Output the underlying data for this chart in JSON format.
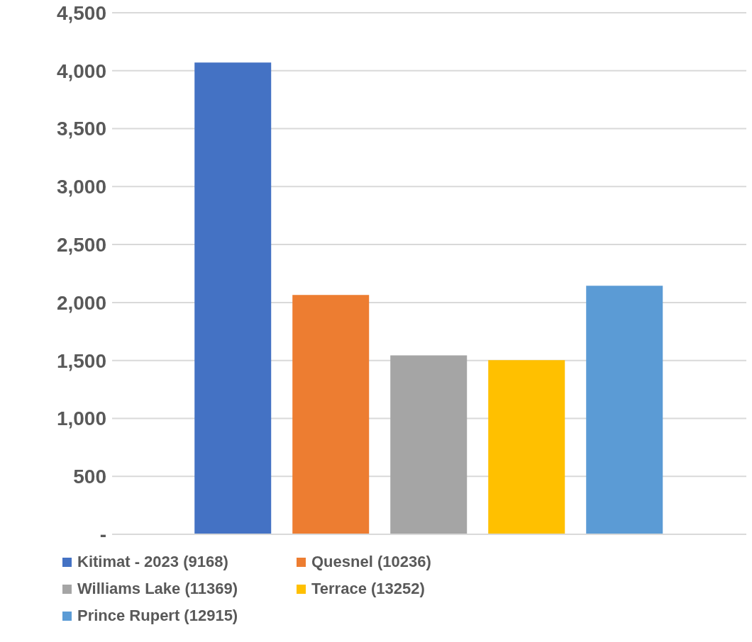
{
  "chart_data": {
    "type": "bar",
    "categories": [
      null
    ],
    "series": [
      {
        "name": "Kitimat - 2023 (9168)",
        "color": "#4472c4",
        "values": [
          4070
        ]
      },
      {
        "name": "Quesnel (10236)",
        "color": "#ed7d31",
        "values": [
          2065
        ]
      },
      {
        "name": "Williams Lake (11369)",
        "color": "#a5a5a5",
        "values": [
          1544
        ]
      },
      {
        "name": "Terrace (13252)",
        "color": "#ffc000",
        "values": [
          1502
        ]
      },
      {
        "name": "Prince Rupert (12915)",
        "color": "#5b9bd5",
        "values": [
          2144
        ]
      }
    ],
    "ylim": [
      0,
      4500
    ],
    "yticks": [
      {
        "value": 0,
        "label": "-"
      },
      500,
      {
        "value": 1000,
        "label": "1,000"
      },
      {
        "value": 1500,
        "label": "1,500"
      },
      {
        "value": 2000,
        "label": "2,000"
      },
      {
        "value": 2500,
        "label": "2,500"
      },
      {
        "value": 3000,
        "label": "3,000"
      },
      {
        "value": 3500,
        "label": "3,500"
      },
      {
        "value": 4000,
        "label": "4,000"
      },
      {
        "value": 4500,
        "label": "4,500"
      }
    ],
    "grid": "y",
    "legend": "bottom"
  }
}
